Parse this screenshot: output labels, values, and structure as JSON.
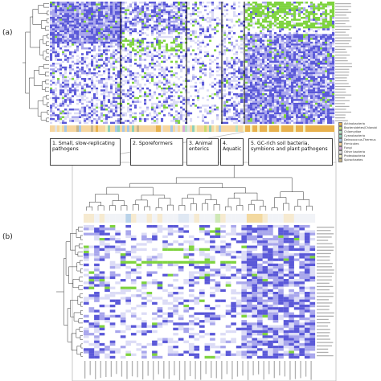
{
  "panels": {
    "a_label": "(a)",
    "b_label": "(b)"
  },
  "clusters": [
    {
      "number": "1.",
      "text": "Small, slow-replicating pathogens"
    },
    {
      "number": "2.",
      "text": "Sporeformers"
    },
    {
      "number": "3.",
      "text": "Animal enterics"
    },
    {
      "number": "4.",
      "text": "Aquatic"
    },
    {
      "number": "5.",
      "text": "GC-rich soil bacteria, symbions and plant pathogens"
    }
  ],
  "legend": [
    {
      "label": "Actinobacteria",
      "color": "#e8b14d"
    },
    {
      "label": "Bacteroidetes/Chlorobi",
      "color": "#c8dc6a"
    },
    {
      "label": "Chlamydiae",
      "color": "#b6e3c2"
    },
    {
      "label": "Cyanobacteria",
      "color": "#8fd0b8"
    },
    {
      "label": "Deinococcus-Thermus",
      "color": "#a6c8e6"
    },
    {
      "label": "Firmicutes",
      "color": "#f6d6a0"
    },
    {
      "label": "Fungi",
      "color": "#d7a8d8"
    },
    {
      "label": "Other bacteria",
      "color": "#e2e2e2"
    },
    {
      "label": "Proteobacteria",
      "color": "#f4f0c0"
    },
    {
      "label": "Spirochaetes",
      "color": "#c8b58a"
    }
  ],
  "colors": {
    "high": "#5a58d8",
    "medium": "#a8a6ec",
    "low": "#dcdcf6",
    "green": "#7ed33e",
    "divider": "#111111"
  }
}
